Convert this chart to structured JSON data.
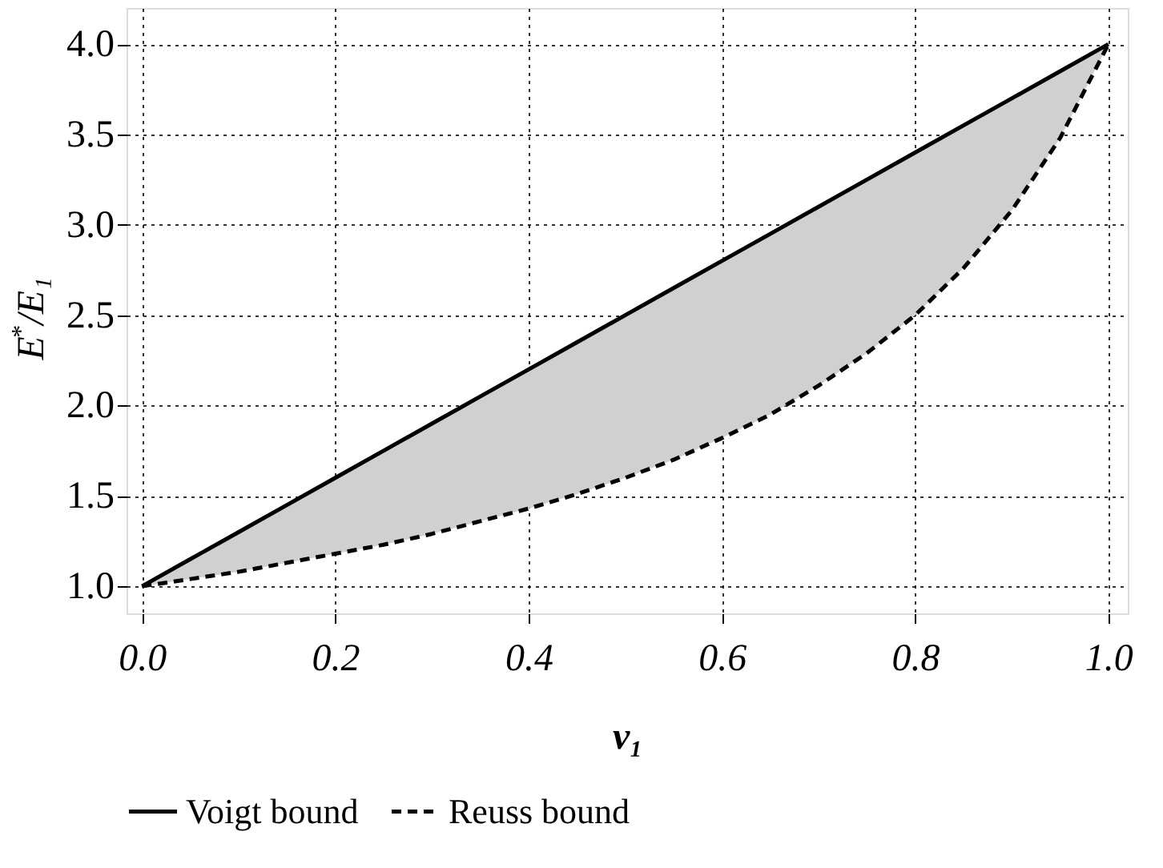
{
  "chart_data": {
    "type": "line",
    "xlabel": "ν₁",
    "ylabel": "E$^{*}$/E₁",
    "x": [
      0,
      0.05,
      0.1,
      0.15,
      0.2,
      0.25,
      0.3,
      0.35,
      0.4,
      0.45,
      0.5,
      0.55,
      0.6,
      0.65,
      0.7,
      0.75,
      0.8,
      0.85,
      0.9,
      0.95,
      1
    ],
    "series": [
      {
        "name": "Voigt bound",
        "color": "#000000",
        "line_style": "solid",
        "values": [
          1,
          1.15,
          1.3,
          1.45,
          1.6,
          1.75,
          1.9,
          2.05,
          2.2,
          2.35,
          2.5,
          2.65,
          2.8,
          2.95,
          3.1,
          3.25,
          3.4,
          3.55,
          3.7,
          3.85,
          4
        ],
        "lower": [
          1,
          1.04,
          1.08,
          1.13,
          1.18,
          1.23,
          1.29,
          1.36,
          1.43,
          1.51,
          1.6,
          1.7,
          1.82,
          1.95,
          2.11,
          2.29,
          2.5,
          2.76,
          3.08,
          3.48,
          4
        ],
        "upper": [
          1,
          1.15,
          1.3,
          1.45,
          1.6,
          1.75,
          1.9,
          2.05,
          2.2,
          2.35,
          2.5,
          2.65,
          2.8,
          2.95,
          3.1,
          3.25,
          3.4,
          3.55,
          3.7,
          3.85,
          4
        ]
      },
      {
        "name": "Reuss bound",
        "color": "#000000",
        "line_style": "dashed",
        "values": [
          1,
          1.04,
          1.08,
          1.13,
          1.18,
          1.23,
          1.29,
          1.36,
          1.43,
          1.51,
          1.6,
          1.7,
          1.82,
          1.95,
          2.11,
          2.29,
          2.5,
          2.76,
          3.08,
          3.48,
          4
        ]
      }
    ],
    "xlim": [
      -0.016,
      1.02
    ],
    "xticks": [
      {
        "value": 0,
        "label": "0.0"
      },
      0.2,
      0.4,
      0.6,
      0.8,
      {
        "value": 1,
        "label": "1.0"
      }
    ],
    "ylim": [
      0.85,
      4.2
    ],
    "yticks": [
      {
        "value": 1,
        "label": "1.0"
      },
      1.5,
      {
        "value": 2,
        "label": "2.0"
      },
      2.5,
      {
        "value": 3,
        "label": "3.0"
      },
      3.5,
      {
        "value": 4,
        "label": "4.0"
      }
    ],
    "grid": true,
    "legend": "bottom",
    "marker": "none"
  }
}
